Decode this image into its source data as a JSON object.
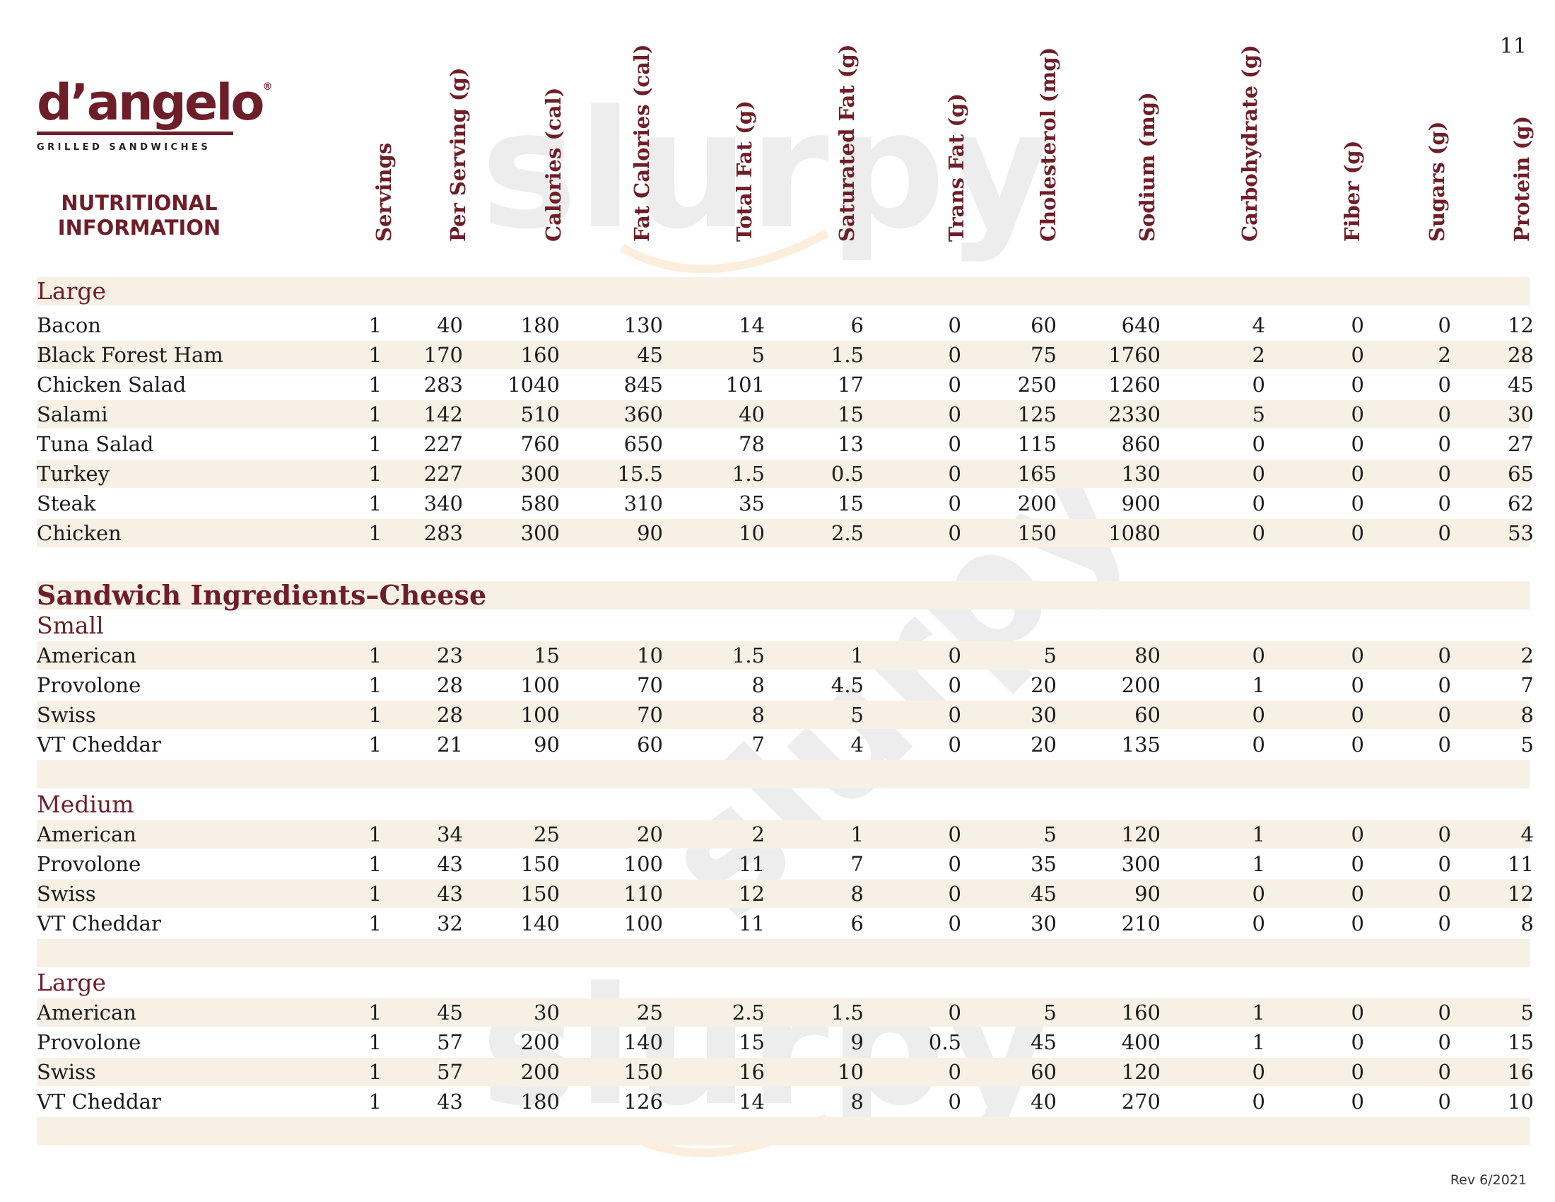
{
  "page_number": "11",
  "brand": {
    "name": "d’angelo",
    "registered": "®",
    "tagline": "GRILLED SANDWICHES"
  },
  "doc_title_line1": "NUTRITIONAL",
  "doc_title_line2": "INFORMATION",
  "columns": [
    "Servings",
    "Per Serving (g)",
    "Calories (cal)",
    "Fat Calories (cal)",
    "Total Fat (g)",
    "Saturated Fat (g)",
    "Trans Fat (g)",
    "Cholesterol (mg)",
    "Sodium (mg)",
    "Carbohydrate (g)",
    "Fiber (g)",
    "Sugars (g)",
    "Protein (g)"
  ],
  "groups": [
    {
      "title": "Large",
      "rows": [
        [
          "Bacon",
          "1",
          "40",
          "180",
          "130",
          "14",
          "6",
          "0",
          "60",
          "640",
          "4",
          "0",
          "0",
          "12"
        ],
        [
          "Black Forest Ham",
          "1",
          "170",
          "160",
          "45",
          "5",
          "1.5",
          "0",
          "75",
          "1760",
          "2",
          "0",
          "2",
          "28"
        ],
        [
          "Chicken Salad",
          "1",
          "283",
          "1040",
          "845",
          "101",
          "17",
          "0",
          "250",
          "1260",
          "0",
          "0",
          "0",
          "45"
        ],
        [
          "Salami",
          "1",
          "142",
          "510",
          "360",
          "40",
          "15",
          "0",
          "125",
          "2330",
          "5",
          "0",
          "0",
          "30"
        ],
        [
          "Tuna Salad",
          "1",
          "227",
          "760",
          "650",
          "78",
          "13",
          "0",
          "115",
          "860",
          "0",
          "0",
          "0",
          "27"
        ],
        [
          "Turkey",
          "1",
          "227",
          "300",
          "15.5",
          "1.5",
          "0.5",
          "0",
          "165",
          "130",
          "0",
          "0",
          "0",
          "65"
        ],
        [
          "Steak",
          "1",
          "340",
          "580",
          "310",
          "35",
          "15",
          "0",
          "200",
          "900",
          "0",
          "0",
          "0",
          "62"
        ],
        [
          "Chicken",
          "1",
          "283",
          "300",
          "90",
          "10",
          "2.5",
          "0",
          "150",
          "1080",
          "0",
          "0",
          "0",
          "53"
        ]
      ]
    },
    {
      "title": "Small",
      "rows": [
        [
          "American",
          "1",
          "23",
          "15",
          "10",
          "1.5",
          "1",
          "0",
          "5",
          "80",
          "0",
          "0",
          "0",
          "2"
        ],
        [
          "Provolone",
          "1",
          "28",
          "100",
          "70",
          "8",
          "4.5",
          "0",
          "20",
          "200",
          "1",
          "0",
          "0",
          "7"
        ],
        [
          "Swiss",
          "1",
          "28",
          "100",
          "70",
          "8",
          "5",
          "0",
          "30",
          "60",
          "0",
          "0",
          "0",
          "8"
        ],
        [
          "VT Cheddar",
          "1",
          "21",
          "90",
          "60",
          "7",
          "4",
          "0",
          "20",
          "135",
          "0",
          "0",
          "0",
          "5"
        ]
      ]
    },
    {
      "title": "Medium",
      "rows": [
        [
          "American",
          "1",
          "34",
          "25",
          "20",
          "2",
          "1",
          "0",
          "5",
          "120",
          "1",
          "0",
          "0",
          "4"
        ],
        [
          "Provolone",
          "1",
          "43",
          "150",
          "100",
          "11",
          "7",
          "0",
          "35",
          "300",
          "1",
          "0",
          "0",
          "11"
        ],
        [
          "Swiss",
          "1",
          "43",
          "150",
          "110",
          "12",
          "8",
          "0",
          "45",
          "90",
          "0",
          "0",
          "0",
          "12"
        ],
        [
          "VT Cheddar",
          "1",
          "32",
          "140",
          "100",
          "11",
          "6",
          "0",
          "30",
          "210",
          "0",
          "0",
          "0",
          "8"
        ]
      ]
    },
    {
      "title": "Large",
      "rows": [
        [
          "American",
          "1",
          "45",
          "30",
          "25",
          "2.5",
          "1.5",
          "0",
          "5",
          "160",
          "1",
          "0",
          "0",
          "5"
        ],
        [
          "Provolone",
          "1",
          "57",
          "200",
          "140",
          "15",
          "9",
          "0.5",
          "45",
          "400",
          "1",
          "0",
          "0",
          "15"
        ],
        [
          "Swiss",
          "1",
          "57",
          "200",
          "150",
          "16",
          "10",
          "0",
          "60",
          "120",
          "0",
          "0",
          "0",
          "16"
        ],
        [
          "VT Cheddar",
          "1",
          "43",
          "180",
          "126",
          "14",
          "8",
          "0",
          "40",
          "270",
          "0",
          "0",
          "0",
          "10"
        ]
      ]
    }
  ],
  "section_heading": "Sandwich Ingredients–Cheese",
  "revision": "Rev 6/2021"
}
